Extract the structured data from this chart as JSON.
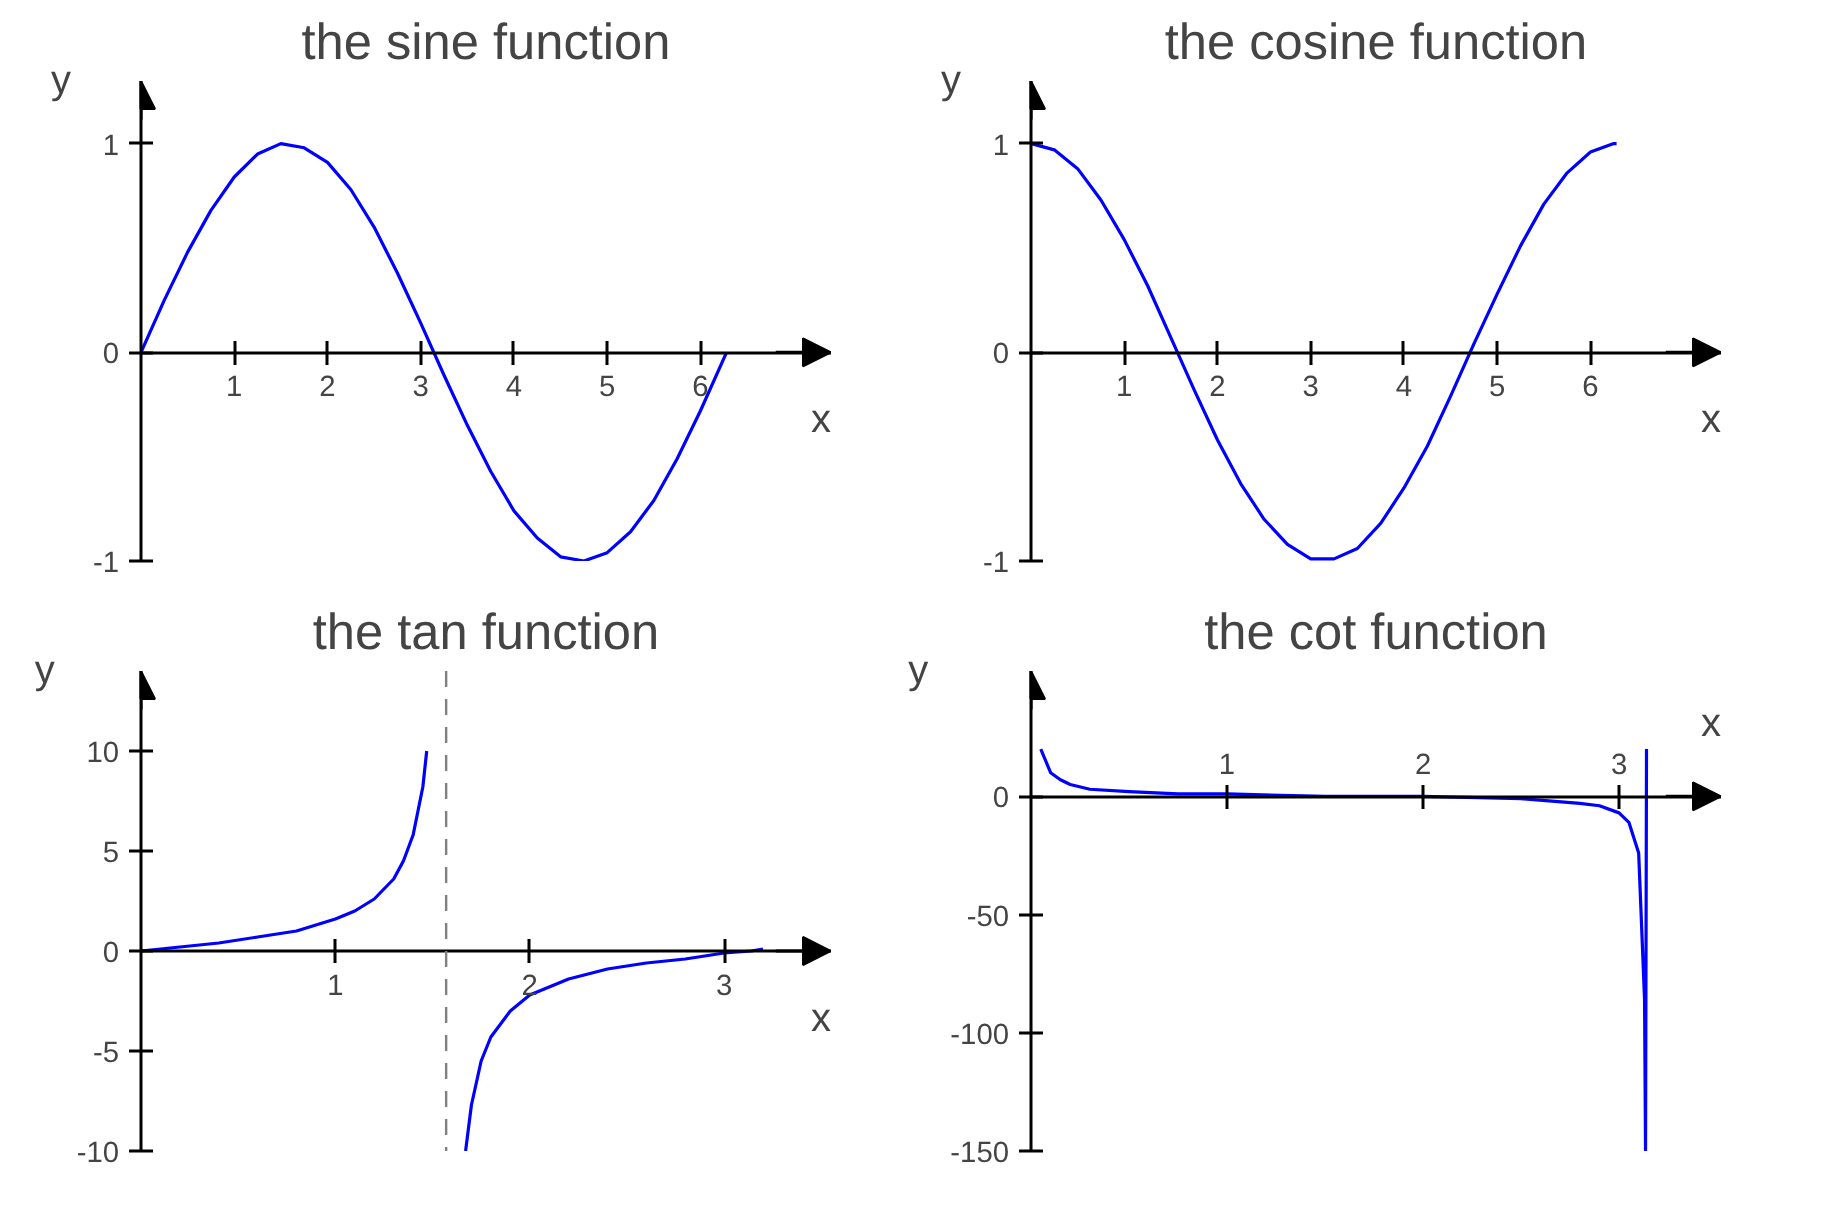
{
  "chart_data": [
    {
      "type": "line",
      "title": "the sine function",
      "xlabel": "x",
      "ylabel": "y",
      "xlim": [
        0,
        7.4
      ],
      "ylim": [
        -1,
        1.3
      ],
      "xticks": [
        1,
        2,
        3,
        4,
        5,
        6
      ],
      "yticks": [
        -1,
        0,
        1
      ],
      "grid": false,
      "series": [
        {
          "color": "#0000ff",
          "x": [
            0,
            0.25,
            0.5,
            0.75,
            1,
            1.25,
            1.5,
            1.75,
            2,
            2.25,
            2.5,
            2.75,
            3,
            3.25,
            3.5,
            3.75,
            4,
            4.25,
            4.5,
            4.75,
            5,
            5.25,
            5.5,
            5.75,
            6,
            6.25,
            6.28
          ],
          "values": [
            0,
            0.25,
            0.48,
            0.68,
            0.84,
            0.95,
            1.0,
            0.98,
            0.91,
            0.78,
            0.6,
            0.38,
            0.14,
            -0.11,
            -0.35,
            -0.57,
            -0.76,
            -0.89,
            -0.98,
            -1.0,
            -0.96,
            -0.86,
            -0.71,
            -0.51,
            -0.28,
            -0.03,
            0
          ]
        }
      ]
    },
    {
      "type": "line",
      "title": "the cosine function",
      "xlabel": "x",
      "ylabel": "y",
      "xlim": [
        0,
        7.4
      ],
      "ylim": [
        -1,
        1.3
      ],
      "xticks": [
        1,
        2,
        3,
        4,
        5,
        6
      ],
      "yticks": [
        -1,
        0,
        1
      ],
      "grid": false,
      "series": [
        {
          "color": "#0000ff",
          "x": [
            0,
            0.25,
            0.5,
            0.75,
            1,
            1.25,
            1.5,
            1.75,
            2,
            2.25,
            2.5,
            2.75,
            3,
            3.25,
            3.5,
            3.75,
            4,
            4.25,
            4.5,
            4.75,
            5,
            5.25,
            5.5,
            5.75,
            6,
            6.25,
            6.28
          ],
          "values": [
            1,
            0.97,
            0.88,
            0.73,
            0.54,
            0.32,
            0.07,
            -0.18,
            -0.42,
            -0.63,
            -0.8,
            -0.92,
            -0.99,
            -0.99,
            -0.94,
            -0.82,
            -0.65,
            -0.45,
            -0.21,
            0.04,
            0.28,
            0.51,
            0.71,
            0.86,
            0.96,
            1.0,
            1.0
          ]
        }
      ]
    },
    {
      "type": "line",
      "title": "the tan function",
      "xlabel": "x",
      "ylabel": "y",
      "xlim": [
        0,
        3.55
      ],
      "ylim": [
        -10,
        14
      ],
      "xticks": [
        1,
        2,
        3
      ],
      "yticks": [
        -10,
        -5,
        0,
        5,
        10
      ],
      "grid": false,
      "ref_lines": [
        {
          "axis": "x",
          "value": 1.57,
          "color": "#808080",
          "line_style": "dashed"
        }
      ],
      "series": [
        {
          "color": "#0000ff",
          "x": [
            0,
            0.2,
            0.4,
            0.6,
            0.8,
            1,
            1.1,
            1.2,
            1.3,
            1.35,
            1.4,
            1.45,
            1.47,
            1.57,
            1.67,
            1.7,
            1.75,
            1.8,
            1.9,
            2,
            2.2,
            2.4,
            2.6,
            2.8,
            3,
            3.14,
            3.2
          ],
          "values": [
            0,
            0.2,
            0.4,
            0.7,
            1.0,
            1.6,
            2.0,
            2.6,
            3.6,
            4.5,
            5.8,
            8.2,
            10,
            null,
            -10,
            -7.7,
            -5.5,
            -4.3,
            -3.0,
            -2.2,
            -1.4,
            -0.9,
            -0.6,
            -0.4,
            -0.1,
            0,
            0.1
          ]
        }
      ]
    },
    {
      "type": "line",
      "title": "the cot function",
      "xlabel": "x",
      "ylabel": "y",
      "xlim": [
        0,
        3.52
      ],
      "ylim": [
        -150,
        53
      ],
      "xticks": [
        1,
        2,
        3
      ],
      "yticks": [
        -150,
        -100,
        -50,
        0
      ],
      "grid": false,
      "series": [
        {
          "color": "#0000ff",
          "x": [
            0.05,
            0.1,
            0.15,
            0.2,
            0.3,
            0.5,
            0.75,
            1,
            1.5,
            2,
            2.5,
            2.8,
            2.9,
            3,
            3.05,
            3.1,
            3.13,
            3.135,
            3.14
          ],
          "values": [
            20,
            10,
            7,
            5,
            3,
            2,
            1,
            1,
            0,
            0,
            -1,
            -3,
            -4,
            -7,
            -11,
            -24,
            -86,
            -150,
            20
          ]
        }
      ]
    }
  ]
}
